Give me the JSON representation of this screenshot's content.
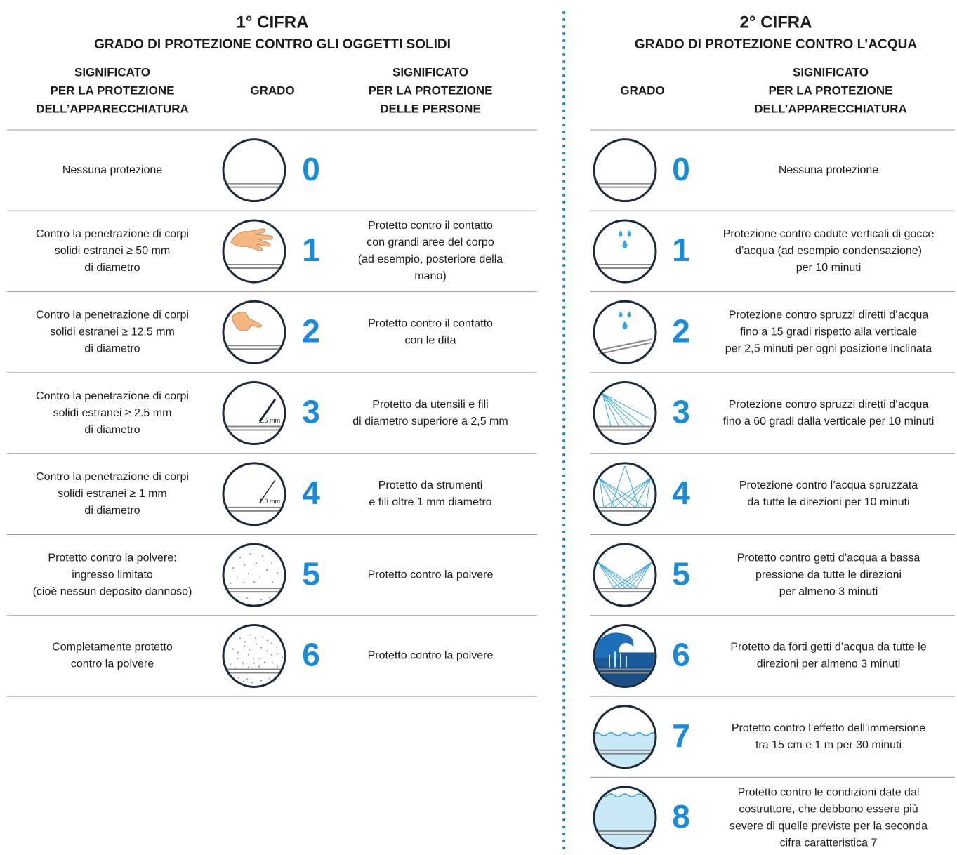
{
  "left": {
    "title": "1° CIFRA",
    "subtitle": "GRADO DI PROTEZIONE CONTRO GLI OGGETTI SOLIDI",
    "headers": {
      "equipment": [
        "SIGNIFICATO",
        "PER LA PROTEZIONE",
        "DELL’APPARECCHIATURA"
      ],
      "grade": [
        "GRADO"
      ],
      "persons": [
        "SIGNIFICATO",
        "PER LA PROTEZIONE",
        "DELLE PERSONE"
      ]
    },
    "rows": [
      {
        "equipment": [
          "Nessuna protezione"
        ],
        "grade": 0
      },
      {
        "equipment": [
          "Contro la penetrazione di corpi",
          "solidi estranei ≥ 50 mm",
          "di diametro"
        ],
        "grade": 1,
        "persons": [
          "Protetto contro il contatto",
          "con grandi aree del corpo",
          "(ad esempio, posteriore della",
          "mano)"
        ]
      },
      {
        "equipment": [
          "Contro la penetrazione di corpi",
          "solidi estranei ≥ 12.5 mm",
          "di diametro"
        ],
        "grade": 2,
        "persons": [
          "Protetto contro il contatto",
          "con le dita"
        ]
      },
      {
        "equipment": [
          "Contro la penetrazione di corpi",
          "solidi estranei ≥ 2.5 mm",
          "di diametro"
        ],
        "grade": 3,
        "icon_label": "2.5 mm",
        "persons": [
          "Protetto da utensili e fili",
          "di diametro superiore a 2,5 mm"
        ]
      },
      {
        "equipment": [
          "Contro la penetrazione di corpi",
          "solidi estranei ≥ 1 mm",
          "di diametro"
        ],
        "grade": 4,
        "icon_label": "1.0 mm",
        "persons": [
          "Protetto da strumenti",
          "e fili oltre 1 mm diametro"
        ]
      },
      {
        "equipment": [
          "Protetto contro la polvere:",
          "ingresso limitato",
          "(cioè nessun deposito dannoso)"
        ],
        "grade": 5,
        "persons": [
          "Protetto contro la polvere"
        ]
      },
      {
        "equipment": [
          "Completamente protetto",
          "contro la polvere"
        ],
        "grade": 6,
        "persons": [
          "Protetto contro la polvere"
        ]
      }
    ]
  },
  "right": {
    "title": "2° CIFRA",
    "subtitle": "GRADO DI PROTEZIONE CONTRO L’ACQUA",
    "headers": {
      "grade": [
        "GRADO"
      ],
      "equipment": [
        "SIGNIFICATO",
        "PER LA PROTEZIONE",
        "DELL’APPARECCHIATURA"
      ]
    },
    "rows": [
      {
        "grade": 0,
        "equipment": [
          "Nessuna protezione"
        ]
      },
      {
        "grade": 1,
        "equipment": [
          "Protezione contro cadute verticali di gocce",
          "d’acqua (ad esempio condensazione)",
          "per 10 minuti"
        ]
      },
      {
        "grade": 2,
        "equipment": [
          "Protezione contro spruzzi diretti d’acqua",
          "fino a 15 gradi rispetto alla verticale",
          "per 2,5 minuti per ogni posizione inclinata"
        ]
      },
      {
        "grade": 3,
        "equipment": [
          "Protezione contro spruzzi diretti d’acqua",
          "fino a 60 gradi dalla verticale per 10 minuti"
        ]
      },
      {
        "grade": 4,
        "equipment": [
          "Protezione contro l’acqua spruzzata",
          "da tutte le direzioni per 10 minuti"
        ]
      },
      {
        "grade": 5,
        "equipment": [
          "Protetto contro getti d’acqua a bassa",
          "pressione da tutte le direzioni",
          "per almeno 3 minuti"
        ]
      },
      {
        "grade": 6,
        "equipment": [
          "Protetto da forti getti d’acqua da tutte le",
          "direzioni per almeno 3 minuti"
        ]
      },
      {
        "grade": 7,
        "equipment": [
          "Protetto contro l’effetto dell’immersione",
          "tra 15 cm e 1 m per 30 minuti"
        ]
      },
      {
        "grade": 8,
        "equipment": [
          "Protetto contro le condizioni date dal",
          "costruttore, che debbono essere più",
          "severe di quelle previste per la seconda",
          "cifra caratteristica 7"
        ]
      }
    ]
  }
}
